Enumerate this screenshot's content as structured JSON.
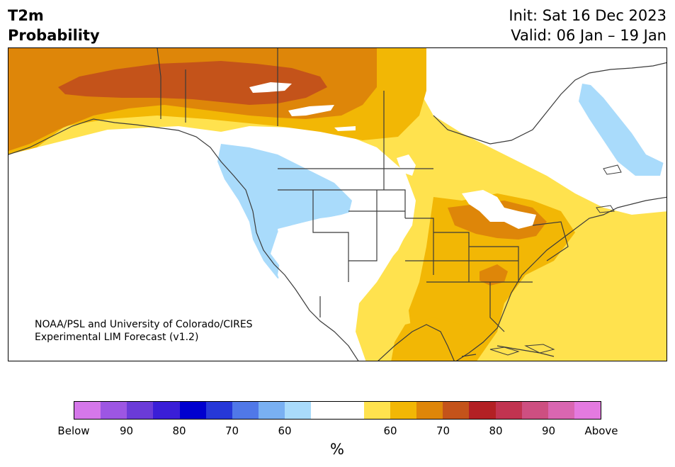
{
  "header": {
    "title_line1": "T2m",
    "title_line2": "Probability",
    "init": "Init: Sat 16 Dec 2023",
    "valid": "Valid: 06 Jan – 19 Jan"
  },
  "credit": {
    "line1": "NOAA/PSL and University of Colorado/CIRES",
    "line2": "Experimental LIM Forecast (v1.2)"
  },
  "colorbar": {
    "colors": [
      "#d577ea",
      "#9d56e3",
      "#6b3bd8",
      "#3a1ed7",
      "#0000cf",
      "#2638d8",
      "#5078e8",
      "#79b0f2",
      "#a9dbfb",
      "#ffffff",
      "#ffffff",
      "#ffe24e",
      "#f2b705",
      "#de8609",
      "#c4531a",
      "#b32024",
      "#c13350",
      "#cd4f81",
      "#d966b1",
      "#e47ae0"
    ],
    "labels": [
      "Below",
      "90",
      "80",
      "70",
      "60",
      "60",
      "70",
      "80",
      "90",
      "Above"
    ],
    "unit": "%"
  },
  "map": {
    "legend_colors": {
      "below_60": "#a9dbfb",
      "above_60": "#ffe24e",
      "above_65": "#f2b705",
      "above_70": "#de8609",
      "above_75": "#c4531a"
    },
    "coastline_color": "#3b3b3b"
  }
}
